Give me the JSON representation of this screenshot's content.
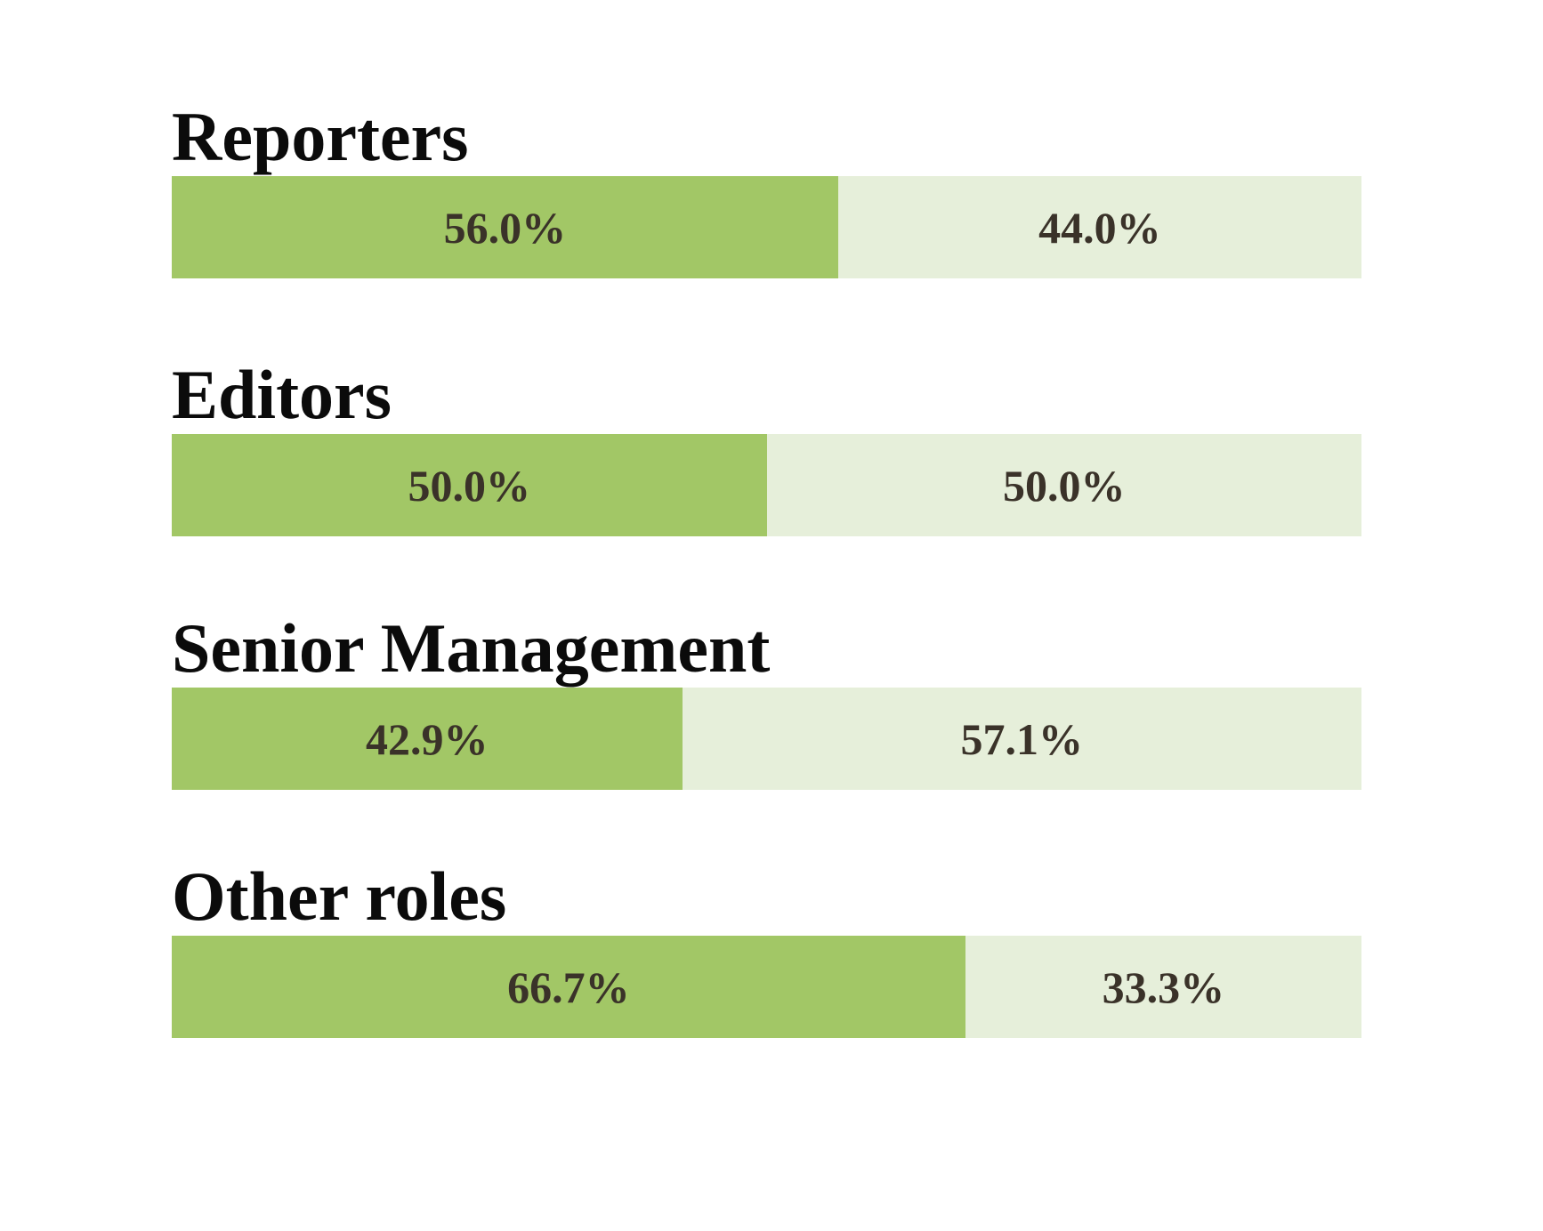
{
  "chart_data": {
    "type": "bar",
    "subtype": "horizontal-stacked-100-percent",
    "title": "",
    "xlabel": "",
    "ylabel": "",
    "axes_visible": false,
    "grid": false,
    "legend": "none",
    "xlim_percent": [
      0,
      100
    ],
    "categories": [
      "Reporters",
      "Editors",
      "Senior Management",
      "Other roles"
    ],
    "series": [
      {
        "name": "segment-green",
        "color": "#a2c766",
        "values": [
          56.0,
          50.0,
          42.9,
          66.7
        ]
      },
      {
        "name": "segment-pale-green",
        "color": "#e6efda",
        "values": [
          44.0,
          50.0,
          57.1,
          33.3
        ]
      }
    ],
    "value_labels": [
      [
        "56.0%",
        "44.0%"
      ],
      [
        "50.0%",
        "50.0%"
      ],
      [
        "42.9%",
        "57.1%"
      ],
      [
        "66.7%",
        "33.3%"
      ]
    ]
  },
  "colors": {
    "background": "#ffffff",
    "bar_primary": "#a2c766",
    "bar_secondary": "#e6efda",
    "category_title_text": "#0b0b0b",
    "value_label_text": "#3a3229"
  }
}
